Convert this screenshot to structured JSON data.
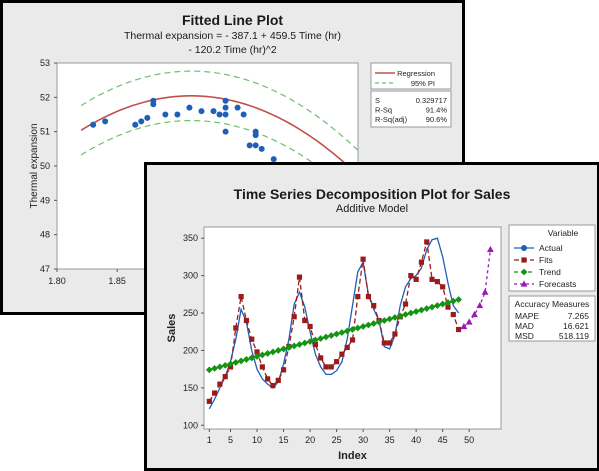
{
  "chart_data": [
    {
      "type": "scatter",
      "title": "Fitted Line Plot",
      "subtitle_lines": [
        "Thermal expansion = - 387.1 + 459.5 Time (hr)",
        "- 120.2 Time (hr)^2"
      ],
      "xlabel": "",
      "ylabel": "Thermal expansion",
      "xlim": [
        1.8,
        2.05
      ],
      "ylim": [
        47,
        53
      ],
      "xticks": [
        "1.80",
        "1.85"
      ],
      "yticks": [
        "47",
        "48",
        "49",
        "50",
        "51",
        "52",
        "53"
      ],
      "grid": false,
      "fit": {
        "a": -387.1,
        "b": 459.5,
        "c": -120.2
      },
      "pi_half_width": 0.72,
      "points": [
        [
          1.83,
          51.2
        ],
        [
          1.84,
          51.3
        ],
        [
          1.865,
          51.2
        ],
        [
          1.87,
          51.3
        ],
        [
          1.875,
          51.4
        ],
        [
          1.88,
          51.9
        ],
        [
          1.88,
          51.8
        ],
        [
          1.89,
          51.5
        ],
        [
          1.9,
          51.5
        ],
        [
          1.91,
          51.7
        ],
        [
          1.92,
          51.6
        ],
        [
          1.93,
          51.6
        ],
        [
          1.935,
          51.5
        ],
        [
          1.94,
          51.9
        ],
        [
          1.94,
          51.7
        ],
        [
          1.94,
          51.5
        ],
        [
          1.94,
          51.0
        ],
        [
          1.95,
          51.7
        ],
        [
          1.955,
          51.5
        ],
        [
          1.96,
          50.6
        ],
        [
          1.965,
          50.6
        ],
        [
          1.965,
          51.0
        ],
        [
          1.965,
          50.9
        ],
        [
          1.97,
          50.5
        ],
        [
          1.98,
          50.2
        ]
      ],
      "legend": {
        "position": "right",
        "regression_label": "Regression",
        "pi_label": "95% PI"
      },
      "stats": [
        {
          "label": "S",
          "value": "0.329717"
        },
        {
          "label": "R-Sq",
          "value": "91.4%"
        },
        {
          "label": "R-Sq(adj)",
          "value": "90.6%"
        }
      ],
      "colors": {
        "points": "#1f5fb8",
        "regression": "#c0504d",
        "pi": "#6fbf6f"
      }
    },
    {
      "type": "line",
      "title": "Time Series Decomposition Plot for Sales",
      "subtitle": "Additive Model",
      "xlabel": "Index",
      "ylabel": "Sales",
      "xlim": [
        0,
        56
      ],
      "ylim": [
        95,
        365
      ],
      "xticks": [
        1,
        5,
        10,
        15,
        20,
        25,
        30,
        35,
        40,
        45,
        50
      ],
      "yticks": [
        100,
        150,
        200,
        250,
        300,
        350
      ],
      "grid": false,
      "series": [
        {
          "name": "Actual",
          "color": "#1f5fb8",
          "x": [
            1,
            2,
            3,
            4,
            5,
            6,
            7,
            8,
            9,
            10,
            11,
            12,
            13,
            14,
            15,
            16,
            17,
            18,
            19,
            20,
            21,
            22,
            23,
            24,
            25,
            26,
            27,
            28,
            29,
            30,
            31,
            32,
            33,
            34,
            35,
            36,
            37,
            38,
            39,
            40,
            41,
            42,
            43,
            44,
            45,
            46,
            47,
            48
          ],
          "values": [
            122,
            135,
            150,
            165,
            185,
            215,
            255,
            238,
            200,
            175,
            162,
            155,
            150,
            158,
            182,
            215,
            262,
            278,
            258,
            225,
            195,
            178,
            168,
            168,
            173,
            185,
            215,
            260,
            305,
            318,
            275,
            255,
            240,
            205,
            202,
            220,
            260,
            285,
            296,
            300,
            310,
            335,
            348,
            350,
            325,
            290,
            260,
            250
          ]
        },
        {
          "name": "Fits",
          "color": "#9b1b1b",
          "x": [
            1,
            2,
            3,
            4,
            5,
            6,
            7,
            8,
            9,
            10,
            11,
            12,
            13,
            14,
            15,
            16,
            17,
            18,
            19,
            20,
            21,
            22,
            23,
            24,
            25,
            26,
            27,
            28,
            29,
            30,
            31,
            32,
            33,
            34,
            35,
            36,
            37,
            38,
            39,
            40,
            41,
            42,
            43,
            44,
            45,
            46,
            47,
            48
          ],
          "values": [
            132,
            143,
            155,
            165,
            178,
            230,
            272,
            240,
            215,
            198,
            178,
            162,
            153,
            160,
            174,
            205,
            245,
            298,
            240,
            232,
            208,
            190,
            178,
            178,
            185,
            195,
            204,
            214,
            272,
            322,
            272,
            260,
            240,
            210,
            210,
            222,
            245,
            262,
            300,
            295,
            318,
            345,
            295,
            292,
            285,
            258,
            248,
            228
          ]
        },
        {
          "name": "Trend",
          "color": "#149414",
          "x": [
            1,
            2,
            3,
            4,
            5,
            6,
            7,
            8,
            9,
            10,
            11,
            12,
            13,
            14,
            15,
            16,
            17,
            18,
            19,
            20,
            21,
            22,
            23,
            24,
            25,
            26,
            27,
            28,
            29,
            30,
            31,
            32,
            33,
            34,
            35,
            36,
            37,
            38,
            39,
            40,
            41,
            42,
            43,
            44,
            45,
            46,
            47,
            48
          ],
          "values": [
            174,
            176,
            178,
            180,
            182,
            184,
            186,
            188,
            190,
            192,
            194,
            196,
            198,
            200,
            202,
            204,
            206,
            208,
            210,
            212,
            214,
            216,
            218,
            220,
            222,
            224,
            226,
            228,
            230,
            232,
            234,
            236,
            238,
            240,
            242,
            244,
            246,
            248,
            250,
            252,
            254,
            256,
            258,
            260,
            262,
            264,
            266,
            268
          ]
        },
        {
          "name": "Forecasts",
          "color": "#9b1bb8",
          "x": [
            49,
            50,
            51,
            52,
            53,
            54
          ],
          "values": [
            232,
            238,
            248,
            260,
            278,
            335
          ]
        }
      ],
      "legend": {
        "position": "right",
        "title": "Variable"
      },
      "accuracy_measures": {
        "title": "Accuracy Measures",
        "rows": [
          {
            "label": "MAPE",
            "value": "7.265"
          },
          {
            "label": "MAD",
            "value": "16.621"
          },
          {
            "label": "MSD",
            "value": "518.119"
          }
        ]
      }
    }
  ]
}
